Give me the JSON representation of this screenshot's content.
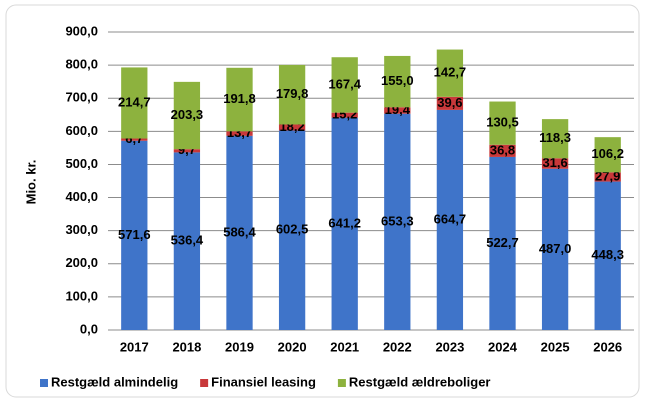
{
  "chart_data": {
    "type": "stacked-bar",
    "y_label": "Mio. kr.",
    "categories": [
      "2017",
      "2018",
      "2019",
      "2020",
      "2021",
      "2022",
      "2023",
      "2024",
      "2025",
      "2026"
    ],
    "series": [
      {
        "name": "Restgæld almindelig",
        "color": "#3f74c9",
        "values": [
          571.6,
          536.4,
          586.4,
          602.5,
          641.2,
          653.3,
          664.7,
          522.7,
          487.0,
          448.3
        ],
        "value_labels": [
          "571,6",
          "536,4",
          "586,4",
          "602,5",
          "641,2",
          "653,3",
          "664,7",
          "522,7",
          "487,0",
          "448,3"
        ]
      },
      {
        "name": "Finansiel leasing",
        "color": "#c8383a",
        "values": [
          6.7,
          9.7,
          13.7,
          18.2,
          15.2,
          19.4,
          39.6,
          36.8,
          31.6,
          27.9
        ],
        "value_labels": [
          "6,7",
          "9,7",
          "13,7",
          "18,2",
          "15,2",
          "19,4",
          "39,6",
          "36,8",
          "31,6",
          "27,9"
        ]
      },
      {
        "name": "Restgæld ældreboliger",
        "color": "#8db23e",
        "values": [
          214.7,
          203.3,
          191.8,
          179.8,
          167.4,
          155.0,
          142.7,
          130.5,
          118.3,
          106.2
        ],
        "value_labels": [
          "214,7",
          "203,3",
          "191,8",
          "179,8",
          "167,4",
          "155,0",
          "142,7",
          "130,5",
          "118,3",
          "106,2"
        ]
      }
    ],
    "ylim": [
      0,
      900
    ],
    "yticks": [
      {
        "value": 0,
        "label": "0,0"
      },
      {
        "value": 100,
        "label": "100,0"
      },
      {
        "value": 200,
        "label": "200,0"
      },
      {
        "value": 300,
        "label": "300,0"
      },
      {
        "value": 400,
        "label": "400,0"
      },
      {
        "value": 500,
        "label": "500,0"
      },
      {
        "value": 600,
        "label": "600,0"
      },
      {
        "value": 700,
        "label": "700,0"
      },
      {
        "value": 800,
        "label": "800,0"
      },
      {
        "value": 900,
        "label": "900,0"
      }
    ],
    "grid": true,
    "legend": "bottom"
  }
}
